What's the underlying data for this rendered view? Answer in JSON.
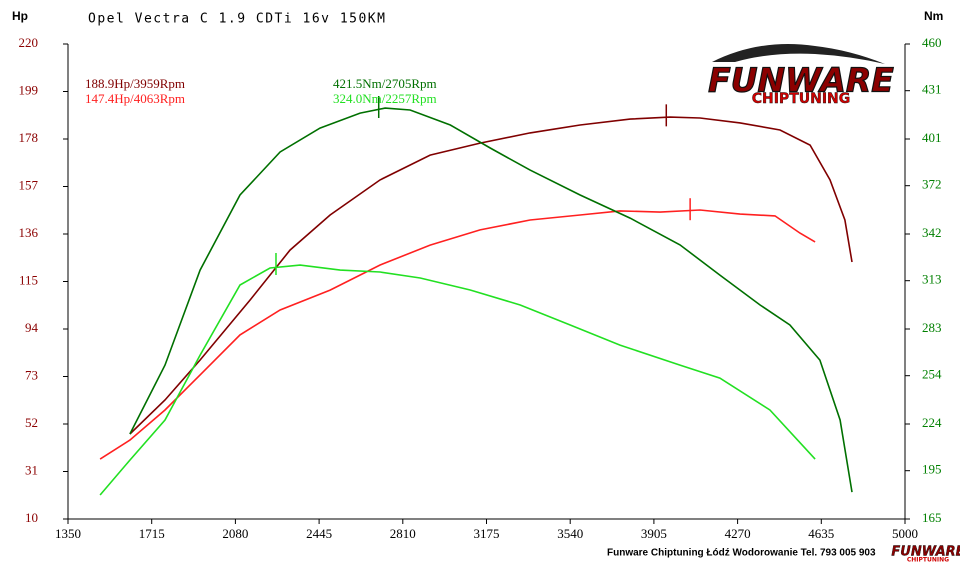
{
  "chart_data": {
    "type": "line",
    "title": "Opel Vectra C 1.9 CDTi 16v 150KM",
    "ylabel": "Hp",
    "y2label": "Nm",
    "footer": "Funware Chiptuning Łódź Wodorowanie Tel. 793 005 903",
    "logo": {
      "brand": "FUNWARE",
      "tagline": "CHIPTUNING"
    },
    "xlim": [
      1350,
      5000
    ],
    "xticks": [
      1350,
      1715,
      2080,
      2445,
      2810,
      3175,
      3540,
      3905,
      4270,
      4635,
      5000
    ],
    "ylim": [
      10,
      220
    ],
    "yticks": [
      10,
      31,
      52,
      73,
      94,
      115,
      136,
      157,
      178,
      199,
      220
    ],
    "y2lim": [
      165,
      460
    ],
    "y2ticks": [
      165,
      195,
      224,
      254,
      283,
      313,
      342,
      372,
      401,
      431,
      460
    ],
    "left_color": "#8b0000",
    "right_color": "#008000",
    "series": [
      {
        "color": "#800000",
        "label": "188.9Hp/3959Rpm",
        "peak": [
          3959,
          188.9
        ],
        "x": [
          1620,
          1773,
          1926,
          2144,
          2318,
          2493,
          2711,
          2929,
          3147,
          3365,
          3583,
          3801,
          3975,
          4106,
          4281,
          4455,
          4586,
          4673,
          4738,
          4769
        ],
        "values": [
          47.6,
          62.6,
          80.3,
          106.8,
          128.9,
          144.4,
          159.9,
          170.9,
          176.2,
          180.7,
          184.2,
          186.8,
          187.7,
          187.3,
          185.1,
          182.0,
          175.3,
          159.9,
          142.2,
          123.6
        ]
      },
      {
        "color": "#ff2020",
        "label": "147.4Hp/4063Rpm",
        "peak": [
          4063,
          147.4
        ],
        "x": [
          1490,
          1620,
          1773,
          1926,
          2100,
          2275,
          2493,
          2711,
          2929,
          3147,
          3365,
          3583,
          3757,
          3932,
          4106,
          4281,
          4433,
          4542,
          4608
        ],
        "values": [
          36.5,
          44.9,
          58.2,
          73.7,
          91.4,
          102.4,
          111.2,
          122.3,
          131.1,
          137.8,
          142.2,
          144.4,
          146.2,
          145.7,
          146.6,
          144.8,
          144.0,
          136.4,
          132.5
        ]
      },
      {
        "color": "#007000",
        "axis": "y2",
        "label": "421.5Nm/2705Rpm",
        "peak": [
          2705,
          421.5
        ],
        "x": [
          1620,
          1773,
          1926,
          2100,
          2275,
          2449,
          2624,
          2733,
          2842,
          3017,
          3191,
          3365,
          3583,
          3801,
          4019,
          4193,
          4368,
          4498,
          4629,
          4717,
          4769
        ],
        "values": [
          217.8,
          260.6,
          319.6,
          366.2,
          392.9,
          407.8,
          417.1,
          420.2,
          419.0,
          409.7,
          395.4,
          381.7,
          366.2,
          351.9,
          335.2,
          316.5,
          297.9,
          285.5,
          263.7,
          226.5,
          181.7
        ]
      },
      {
        "color": "#22e022",
        "axis": "y2",
        "label": "324.0Nm/2257Rpm",
        "peak": [
          2257,
          324.0
        ],
        "x": [
          1490,
          1620,
          1773,
          1926,
          2100,
          2231,
          2362,
          2537,
          2711,
          2886,
          3104,
          3322,
          3540,
          3757,
          4019,
          4193,
          4411,
          4608
        ],
        "values": [
          179.9,
          201.6,
          226.5,
          266.8,
          310.3,
          320.9,
          322.7,
          319.6,
          318.4,
          314.7,
          307.2,
          297.9,
          285.5,
          273.0,
          260.6,
          252.5,
          232.7,
          202.2
        ]
      }
    ]
  }
}
